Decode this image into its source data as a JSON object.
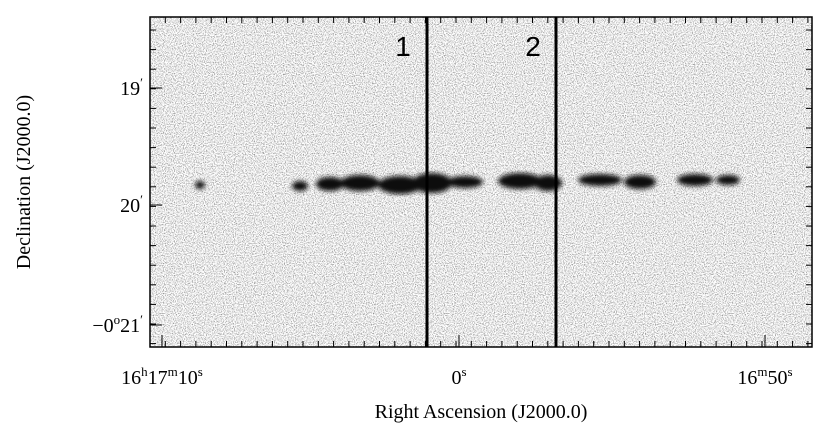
{
  "axes": {
    "x_label": "Right Ascension (J2000.0)",
    "y_label": "Declination (J2000.0)",
    "x_ticks": [
      [
        "16",
        "h",
        "17",
        "m",
        "10",
        "s"
      ],
      [
        "0",
        "s"
      ],
      [
        "16",
        "m",
        "50",
        "s"
      ]
    ],
    "y_ticks": [
      [
        "19",
        "′"
      ],
      [
        "20",
        "′"
      ],
      [
        "−0",
        "o",
        "21",
        "′"
      ]
    ]
  },
  "slits": [
    "1",
    "2"
  ]
}
